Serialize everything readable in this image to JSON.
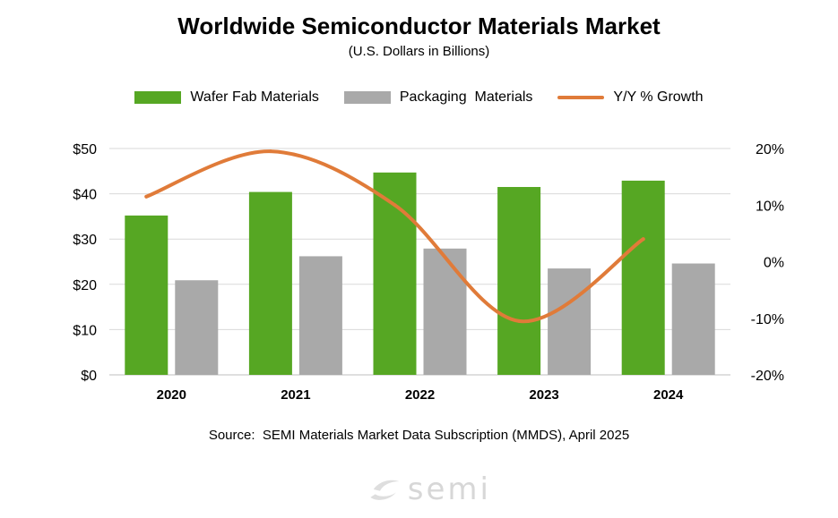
{
  "colors": {
    "wafer": "#56a723",
    "packaging": "#a9a9a9",
    "growth": "#e07b39",
    "grid": "#d9d9d9",
    "axis": "#bfbfbf"
  },
  "chart_data": {
    "type": "bar",
    "title": "Worldwide Semiconductor Materials Market",
    "subtitle": "(U.S. Dollars in Billions)",
    "categories": [
      "2020",
      "2021",
      "2022",
      "2023",
      "2024"
    ],
    "series": [
      {
        "name": "Wafer Fab Materials",
        "type": "bar",
        "axis": "left",
        "values": [
          35.2,
          40.4,
          44.7,
          41.5,
          42.9
        ]
      },
      {
        "name": "Packaging  Materials",
        "type": "bar",
        "axis": "left",
        "values": [
          20.9,
          26.2,
          27.9,
          23.5,
          24.6
        ]
      },
      {
        "name": "Y/Y % Growth",
        "type": "line",
        "axis": "right",
        "values": [
          11.5,
          19.5,
          10,
          -10.5,
          4
        ]
      }
    ],
    "ylim": [
      0,
      50
    ],
    "y_ticks": [
      "$0",
      "$10",
      "$20",
      "$30",
      "$40",
      "$50"
    ],
    "y2lim": [
      -20,
      20
    ],
    "y2_ticks": [
      "-20%",
      "-10%",
      "0%",
      "10%",
      "20%"
    ],
    "grid": true,
    "legend": "top"
  },
  "source": "Source:  SEMI Materials Market Data Subscription (MMDS), April 2025",
  "logo": {
    "text": "semi",
    "icon": "semi-swoosh-icon"
  }
}
